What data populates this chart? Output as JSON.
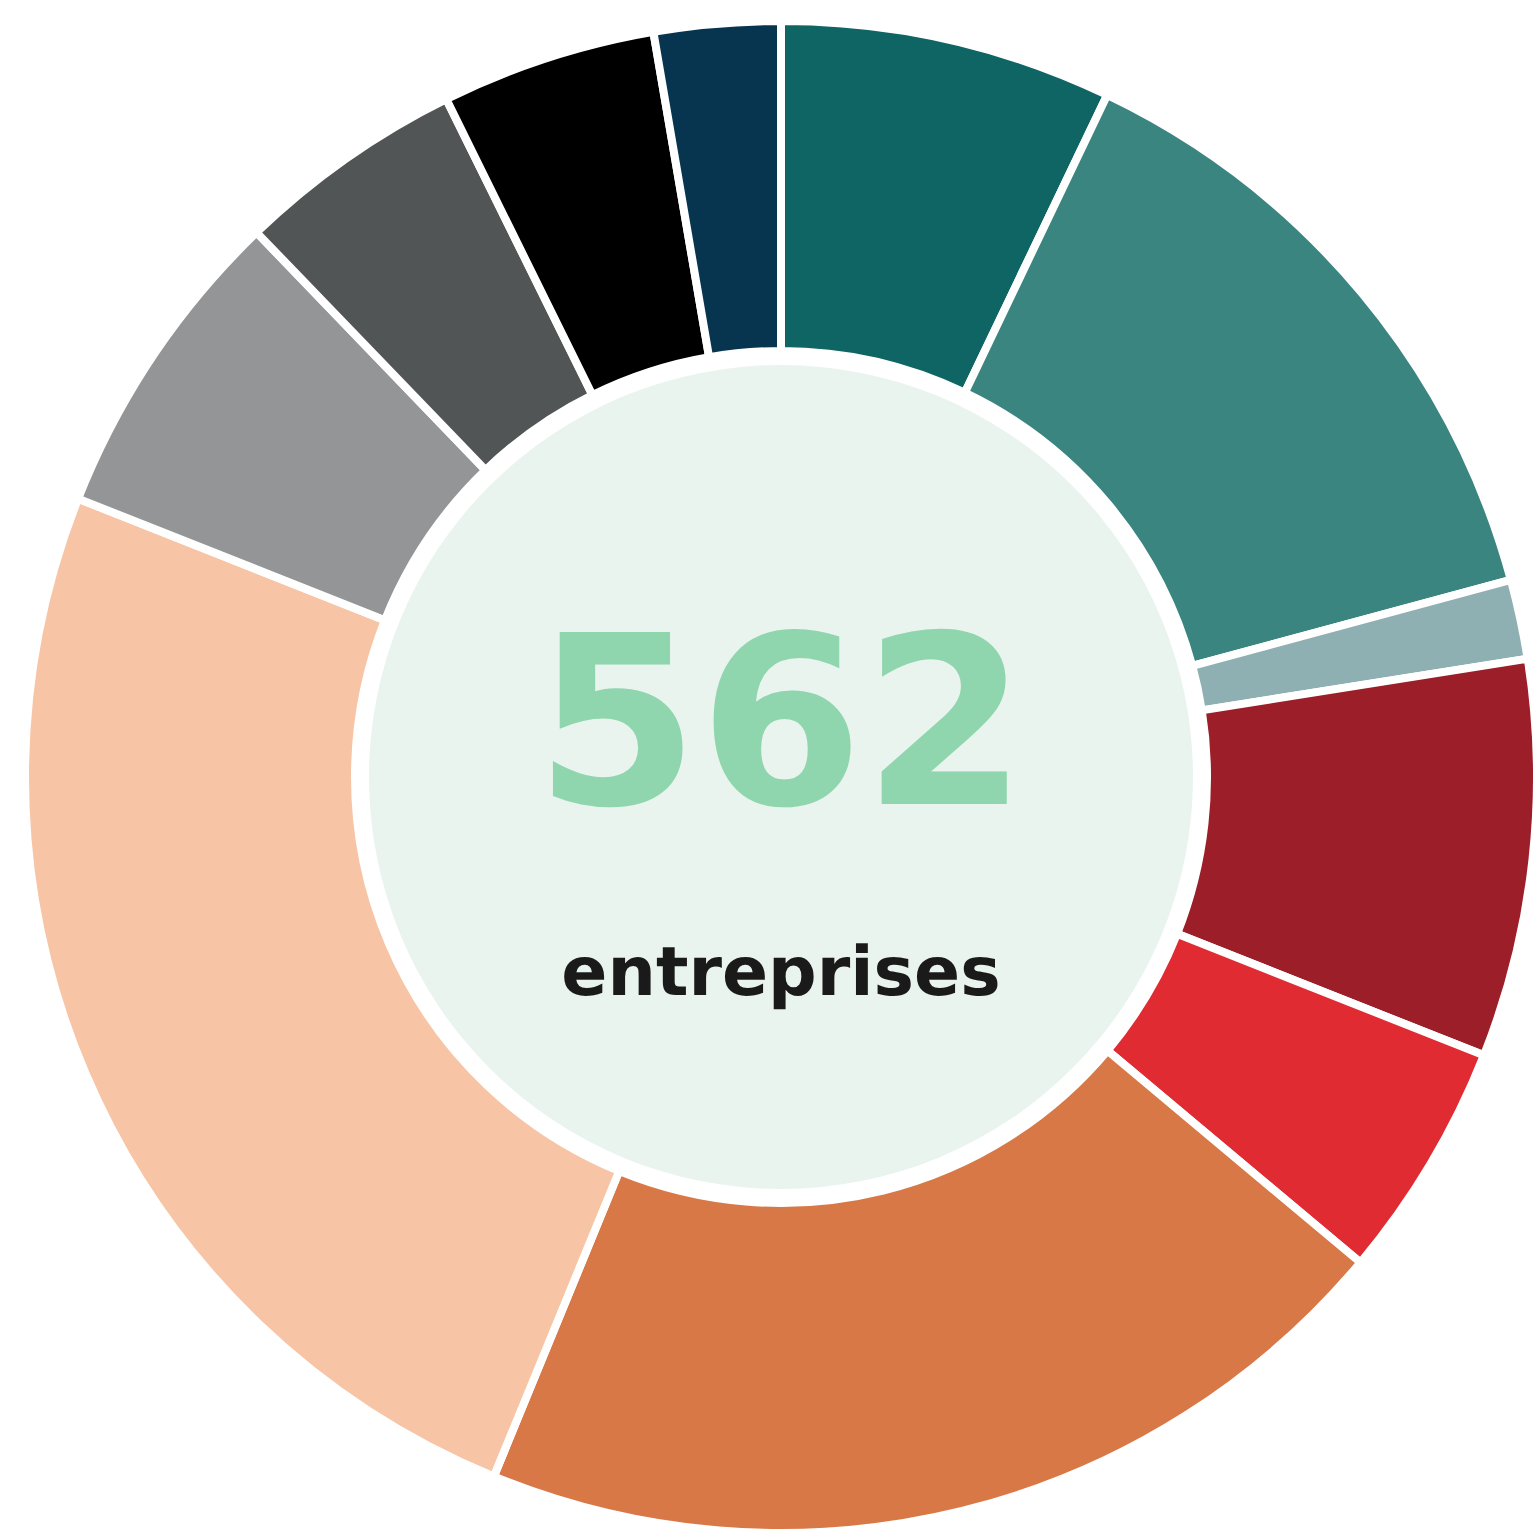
{
  "chart_data": {
    "type": "donut",
    "categories": [
      null,
      null,
      null,
      null,
      null,
      null,
      null,
      null,
      null,
      null,
      null
    ],
    "values": [
      7.1,
      13.7,
      1.7,
      8.5,
      5.1,
      20.1,
      24.8,
      6.8,
      4.9,
      4.6,
      2.7
    ],
    "colors": [
      "#0f6464",
      "#3a8580",
      "#8fb0b3",
      "#9b1e28",
      "#e02b33",
      "#d77846",
      "#f7c5a5",
      "#939596",
      "#525555",
      "#000000",
      "#07354f"
    ],
    "annotations": [
      "562",
      "entreprises"
    ]
  }
}
